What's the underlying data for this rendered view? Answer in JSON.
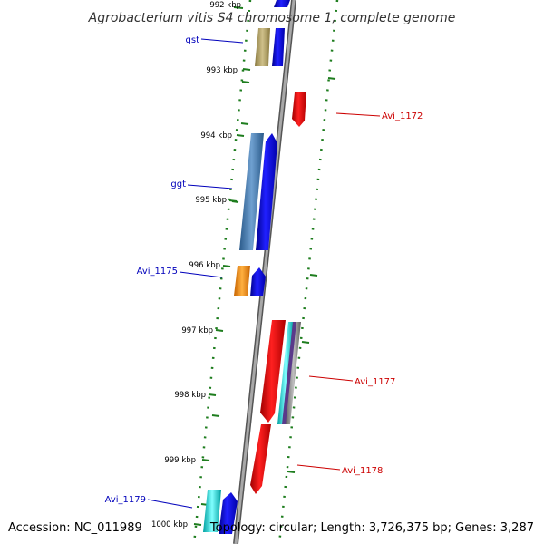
{
  "title": "Agrobacterium vitis S4 chromosome 1, complete genome",
  "footer": {
    "accession": "Accession: NC_011989",
    "summary": "Topology: circular; Length: 3,726,375 bp; Genes: 3,287"
  },
  "ticks": [
    "992 kbp",
    "993 kbp",
    "994 kbp",
    "995 kbp",
    "996 kbp",
    "997 kbp",
    "998 kbp",
    "999 kbp",
    "1000 kbp"
  ],
  "genes_left": [
    {
      "id": "gst",
      "label": "gst",
      "color": "#0000bb"
    },
    {
      "id": "ggt",
      "label": "ggt",
      "color": "#0000bb"
    },
    {
      "id": "avi1175",
      "label": "Avi_1175",
      "color": "#0000bb"
    },
    {
      "id": "avi1179",
      "label": "Avi_1179",
      "color": "#0000bb"
    }
  ],
  "genes_right": [
    {
      "id": "avi1172",
      "label": "Avi_1172",
      "color": "#cc0000"
    },
    {
      "id": "avi1177",
      "label": "Avi_1177",
      "color": "#cc0000"
    },
    {
      "id": "avi1178",
      "label": "Avi_1178",
      "color": "#cc0000"
    }
  ],
  "colors": {
    "backbone": "#8a8a8a",
    "forward_cds": "#0000ee",
    "reverse_cds": "#ee0000",
    "gc_track": "#1e7d1e",
    "gst_cds": "#b8a870",
    "ggt_cds": "#4a7fb5",
    "avi1175_cds": "#ff9a1a",
    "avi1179_cds": "#00e0e0"
  }
}
